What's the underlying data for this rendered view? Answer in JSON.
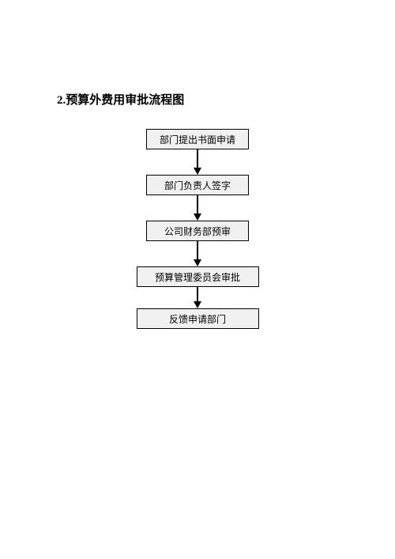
{
  "title": "2.预算外费用审批流程图",
  "flowchart": {
    "type": "flowchart",
    "background_color": "#ffffff",
    "node_fill": "#f0f0f0",
    "node_border": "#000000",
    "node_border_width": 1,
    "node_fontsize": 12,
    "node_text_color": "#000000",
    "arrow_color": "#000000",
    "arrow_line_width": 1.5,
    "arrow_head_size": 9,
    "nodes": [
      {
        "id": "n1",
        "label": "部门提出书面申请",
        "width": 130,
        "height": 26
      },
      {
        "id": "n2",
        "label": "部门负责人签字",
        "width": 130,
        "height": 26
      },
      {
        "id": "n3",
        "label": "公司财务部预审",
        "width": 130,
        "height": 26
      },
      {
        "id": "n4",
        "label": "预算管理委员会审批",
        "width": 155,
        "height": 26
      },
      {
        "id": "n5",
        "label": "反馈申请部门",
        "width": 155,
        "height": 26
      }
    ],
    "edges": [
      {
        "from": "n1",
        "to": "n2",
        "length": 32
      },
      {
        "from": "n2",
        "to": "n3",
        "length": 32
      },
      {
        "from": "n3",
        "to": "n4",
        "length": 32
      },
      {
        "from": "n4",
        "to": "n5",
        "length": 27
      }
    ]
  }
}
